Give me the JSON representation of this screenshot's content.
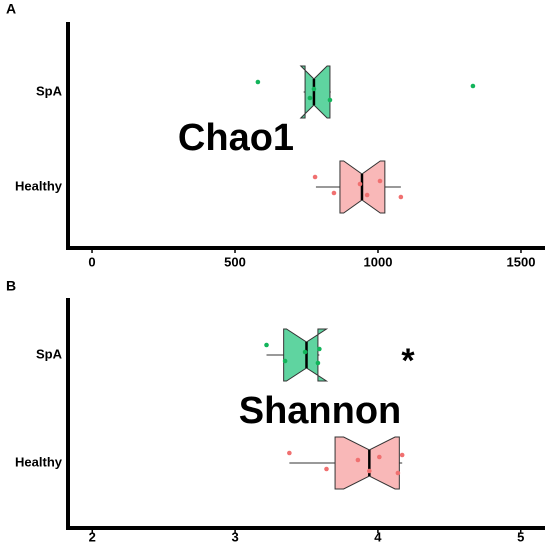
{
  "chart_data": [
    {
      "type": "box",
      "panel": "A",
      "label": "Chao1",
      "categories": [
        "SpA",
        "Healthy"
      ],
      "xlim": [
        -84,
        1584
      ],
      "xticks": [
        0,
        500,
        1000,
        1500
      ],
      "boxes": [
        {
          "color": "#5fd4a0",
          "point_color": "#12b45a",
          "whislo": 740,
          "q1": 745,
          "notchlo": 730,
          "med": 776,
          "notchhi": 822,
          "q3": 832,
          "whishi": 835,
          "points": [
            580,
            762,
            776,
            832,
            1332
          ]
        },
        {
          "color": "#f9b8b8",
          "point_color": "#f07070",
          "whislo": 783,
          "q1": 867,
          "notchlo": 880,
          "med": 944,
          "notchhi": 1008,
          "q3": 1024,
          "whishi": 1080,
          "points": [
            780,
            846,
            937,
            962,
            1007,
            1080
          ]
        }
      ]
    },
    {
      "type": "box",
      "panel": "B",
      "label": "Shannon",
      "annotation": "*",
      "categories": [
        "SpA",
        "Healthy"
      ],
      "xlim": [
        1.83,
        5.17
      ],
      "xticks": [
        2,
        3,
        4,
        5
      ],
      "boxes": [
        {
          "color": "#5fd4a0",
          "point_color": "#12b45a",
          "whislo": 3.22,
          "q1": 3.34,
          "notchlo": 3.36,
          "med": 3.5,
          "notchhi": 3.64,
          "q3": 3.58,
          "whishi": 3.59,
          "points": [
            3.22,
            3.35,
            3.49,
            3.58,
            3.59
          ]
        },
        {
          "color": "#f9b8b8",
          "point_color": "#f07070",
          "whislo": 3.38,
          "q1": 3.7,
          "notchlo": 3.76,
          "med": 3.94,
          "notchhi": 4.12,
          "q3": 4.15,
          "whishi": 4.17,
          "points": [
            3.38,
            3.64,
            3.86,
            3.94,
            4.01,
            4.14,
            4.17
          ]
        }
      ]
    }
  ]
}
